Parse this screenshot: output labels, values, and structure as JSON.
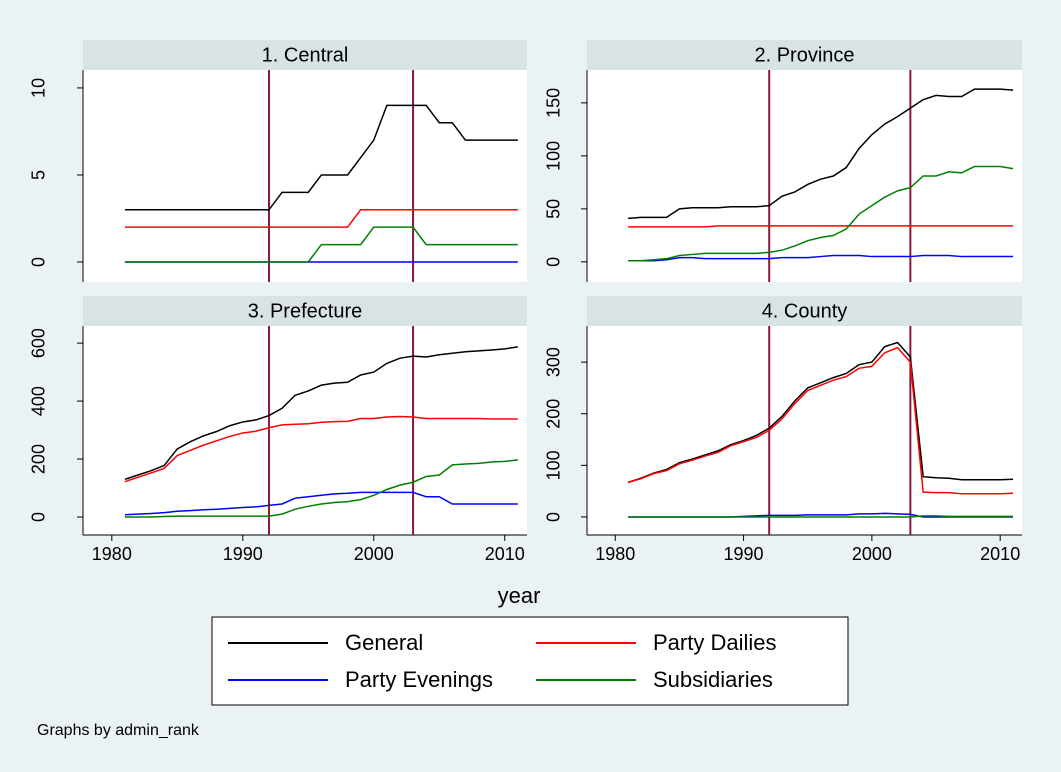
{
  "chart_data": [
    {
      "type": "line",
      "title": "1. Central",
      "x": [
        1981,
        1982,
        1983,
        1984,
        1985,
        1986,
        1987,
        1988,
        1989,
        1990,
        1991,
        1992,
        1993,
        1994,
        1995,
        1996,
        1997,
        1998,
        1999,
        2000,
        2001,
        2002,
        2003,
        2004,
        2005,
        2006,
        2007,
        2008,
        2009,
        2010,
        2011
      ],
      "xlim": [
        1977.8,
        2011.7
      ],
      "ylim": [
        -1.15,
        11.03
      ],
      "yticks": [
        0,
        5,
        10
      ],
      "xlines": [
        1992,
        2003
      ],
      "xline_color": "#8b1a3a",
      "series": [
        {
          "name": "General",
          "color": "#000000",
          "values": [
            3,
            3,
            3,
            3,
            3,
            3,
            3,
            3,
            3,
            3,
            3,
            3,
            4,
            4,
            4,
            5,
            5,
            5,
            6,
            7,
            9,
            9,
            9,
            9,
            8,
            8,
            7,
            7,
            7,
            7,
            7
          ]
        },
        {
          "name": "Party Dailies",
          "color": "#ff0000",
          "values": [
            2,
            2,
            2,
            2,
            2,
            2,
            2,
            2,
            2,
            2,
            2,
            2,
            2,
            2,
            2,
            2,
            2,
            2,
            3,
            3,
            3,
            3,
            3,
            3,
            3,
            3,
            3,
            3,
            3,
            3,
            3
          ]
        },
        {
          "name": "Party Evenings",
          "color": "#0000ff",
          "values": [
            0,
            0,
            0,
            0,
            0,
            0,
            0,
            0,
            0,
            0,
            0,
            0,
            0,
            0,
            0,
            0,
            0,
            0,
            0,
            0,
            0,
            0,
            0,
            0,
            0,
            0,
            0,
            0,
            0,
            0,
            0
          ]
        },
        {
          "name": "Subsidiaries",
          "color": "#008000",
          "values": [
            0,
            0,
            0,
            0,
            0,
            0,
            0,
            0,
            0,
            0,
            0,
            0,
            0,
            0,
            0,
            1,
            1,
            1,
            1,
            2,
            2,
            2,
            2,
            1,
            1,
            1,
            1,
            1,
            1,
            1,
            1
          ]
        }
      ]
    },
    {
      "type": "line",
      "title": "2. Province",
      "x": [
        1981,
        1982,
        1983,
        1984,
        1985,
        1986,
        1987,
        1988,
        1989,
        1990,
        1991,
        1992,
        1993,
        1994,
        1995,
        1996,
        1997,
        1998,
        1999,
        2000,
        2001,
        2002,
        2003,
        2004,
        2005,
        2006,
        2007,
        2008,
        2009,
        2010,
        2011
      ],
      "xlim": [
        1977.8,
        2011.7
      ],
      "ylim": [
        -19,
        181
      ],
      "yticks": [
        0,
        50,
        100,
        150
      ],
      "xlines": [
        1992,
        2003
      ],
      "xline_color": "#8b1a3a",
      "series": [
        {
          "name": "General",
          "color": "#000000",
          "values": [
            41,
            42,
            42,
            42,
            50,
            51,
            51,
            51,
            52,
            52,
            52,
            53,
            62,
            66,
            73,
            78,
            81,
            89,
            107,
            120,
            130,
            137,
            145,
            153,
            157,
            156,
            156,
            163,
            163,
            163,
            162
          ]
        },
        {
          "name": "Party Dailies",
          "color": "#ff0000",
          "values": [
            33,
            33,
            33,
            33,
            33,
            33,
            33,
            34,
            34,
            34,
            34,
            34,
            34,
            34,
            34,
            34,
            34,
            34,
            34,
            34,
            34,
            34,
            34,
            34,
            34,
            34,
            34,
            34,
            34,
            34,
            34
          ]
        },
        {
          "name": "Party Evenings",
          "color": "#0000ff",
          "values": [
            1,
            1,
            1,
            2,
            4,
            4,
            3,
            3,
            3,
            3,
            3,
            3,
            4,
            4,
            4,
            5,
            6,
            6,
            6,
            5,
            5,
            5,
            5,
            6,
            6,
            6,
            5,
            5,
            5,
            5,
            5
          ]
        },
        {
          "name": "Subsidiaries",
          "color": "#008000",
          "values": [
            1,
            1,
            2,
            3,
            6,
            7,
            8,
            8,
            8,
            8,
            8,
            9,
            11,
            15,
            20,
            23,
            25,
            31,
            45,
            53,
            61,
            67,
            70,
            81,
            81,
            85,
            84,
            90,
            90,
            90,
            88
          ]
        }
      ]
    },
    {
      "type": "line",
      "title": "3. Prefecture",
      "x": [
        1981,
        1982,
        1983,
        1984,
        1985,
        1986,
        1987,
        1988,
        1989,
        1990,
        1991,
        1992,
        1993,
        1994,
        1995,
        1996,
        1997,
        1998,
        1999,
        2000,
        2001,
        2002,
        2003,
        2004,
        2005,
        2006,
        2007,
        2008,
        2009,
        2010,
        2011
      ],
      "xlim": [
        1977.8,
        2011.7
      ],
      "xticks": [
        1980,
        1990,
        2000,
        2010
      ],
      "ylim": [
        -62,
        659
      ],
      "yticks": [
        0,
        200,
        400,
        600
      ],
      "xlines": [
        1992,
        2003
      ],
      "xline_color": "#8b1a3a",
      "series": [
        {
          "name": "General",
          "color": "#000000",
          "values": [
            130,
            145,
            160,
            178,
            235,
            260,
            280,
            295,
            315,
            328,
            335,
            350,
            375,
            420,
            435,
            455,
            462,
            465,
            490,
            500,
            530,
            548,
            555,
            552,
            560,
            565,
            570,
            573,
            576,
            580,
            587
          ]
        },
        {
          "name": "Party Dailies",
          "color": "#ff0000",
          "values": [
            122,
            137,
            152,
            168,
            212,
            230,
            248,
            263,
            278,
            290,
            296,
            308,
            318,
            320,
            322,
            327,
            329,
            330,
            340,
            340,
            345,
            347,
            345,
            340,
            340,
            340,
            340,
            340,
            338,
            338,
            338
          ]
        },
        {
          "name": "Party Evenings",
          "color": "#0000ff",
          "values": [
            8,
            10,
            12,
            15,
            20,
            22,
            25,
            27,
            30,
            33,
            35,
            40,
            45,
            65,
            70,
            75,
            80,
            82,
            85,
            85,
            85,
            85,
            85,
            70,
            70,
            45,
            45,
            45,
            45,
            45,
            45
          ]
        },
        {
          "name": "Subsidiaries",
          "color": "#008000",
          "values": [
            0,
            0,
            0,
            2,
            3,
            3,
            3,
            3,
            3,
            3,
            3,
            3,
            10,
            27,
            37,
            45,
            50,
            53,
            60,
            75,
            95,
            110,
            120,
            140,
            145,
            180,
            183,
            185,
            190,
            192,
            197
          ]
        }
      ]
    },
    {
      "type": "line",
      "title": "4. County",
      "x": [
        1981,
        1982,
        1983,
        1984,
        1985,
        1986,
        1987,
        1988,
        1989,
        1990,
        1991,
        1992,
        1993,
        1994,
        1995,
        1996,
        1997,
        1998,
        1999,
        2000,
        2001,
        2002,
        2003,
        2004,
        2005,
        2006,
        2007,
        2008,
        2009,
        2010,
        2011
      ],
      "xlim": [
        1977.8,
        2011.7
      ],
      "xticks": [
        1980,
        1990,
        2000,
        2010
      ],
      "ylim": [
        -35,
        370
      ],
      "yticks": [
        0,
        100,
        200,
        300
      ],
      "xlines": [
        1992,
        2003
      ],
      "xline_color": "#8b1a3a",
      "series": [
        {
          "name": "General",
          "color": "#000000",
          "values": [
            67,
            75,
            85,
            92,
            105,
            112,
            120,
            128,
            140,
            148,
            158,
            172,
            195,
            225,
            250,
            260,
            270,
            278,
            295,
            300,
            330,
            338,
            310,
            78,
            76,
            75,
            72,
            72,
            72,
            72,
            73
          ]
        },
        {
          "name": "Party Dailies",
          "color": "#ff0000",
          "values": [
            67,
            74,
            84,
            90,
            103,
            110,
            118,
            125,
            138,
            146,
            154,
            168,
            190,
            220,
            245,
            255,
            265,
            272,
            288,
            292,
            318,
            328,
            300,
            48,
            47,
            47,
            45,
            45,
            45,
            45,
            46
          ]
        },
        {
          "name": "Party Evenings",
          "color": "#0000ff",
          "values": [
            0,
            0,
            0,
            0,
            0,
            0,
            0,
            0,
            0,
            1,
            2,
            3,
            3,
            3,
            4,
            4,
            4,
            4,
            6,
            6,
            7,
            6,
            5,
            0,
            0,
            0,
            0,
            0,
            0,
            0,
            0
          ]
        },
        {
          "name": "Subsidiaries",
          "color": "#008000",
          "values": [
            0,
            0,
            0,
            0,
            0,
            0,
            0,
            0,
            0,
            0,
            0,
            0,
            0,
            0,
            0,
            0,
            0,
            0,
            0,
            0,
            0,
            0,
            0,
            2,
            2,
            1,
            1,
            1,
            1,
            1,
            1
          ]
        }
      ]
    }
  ],
  "xlabel": "year",
  "note": "Graphs by admin_rank"
}
